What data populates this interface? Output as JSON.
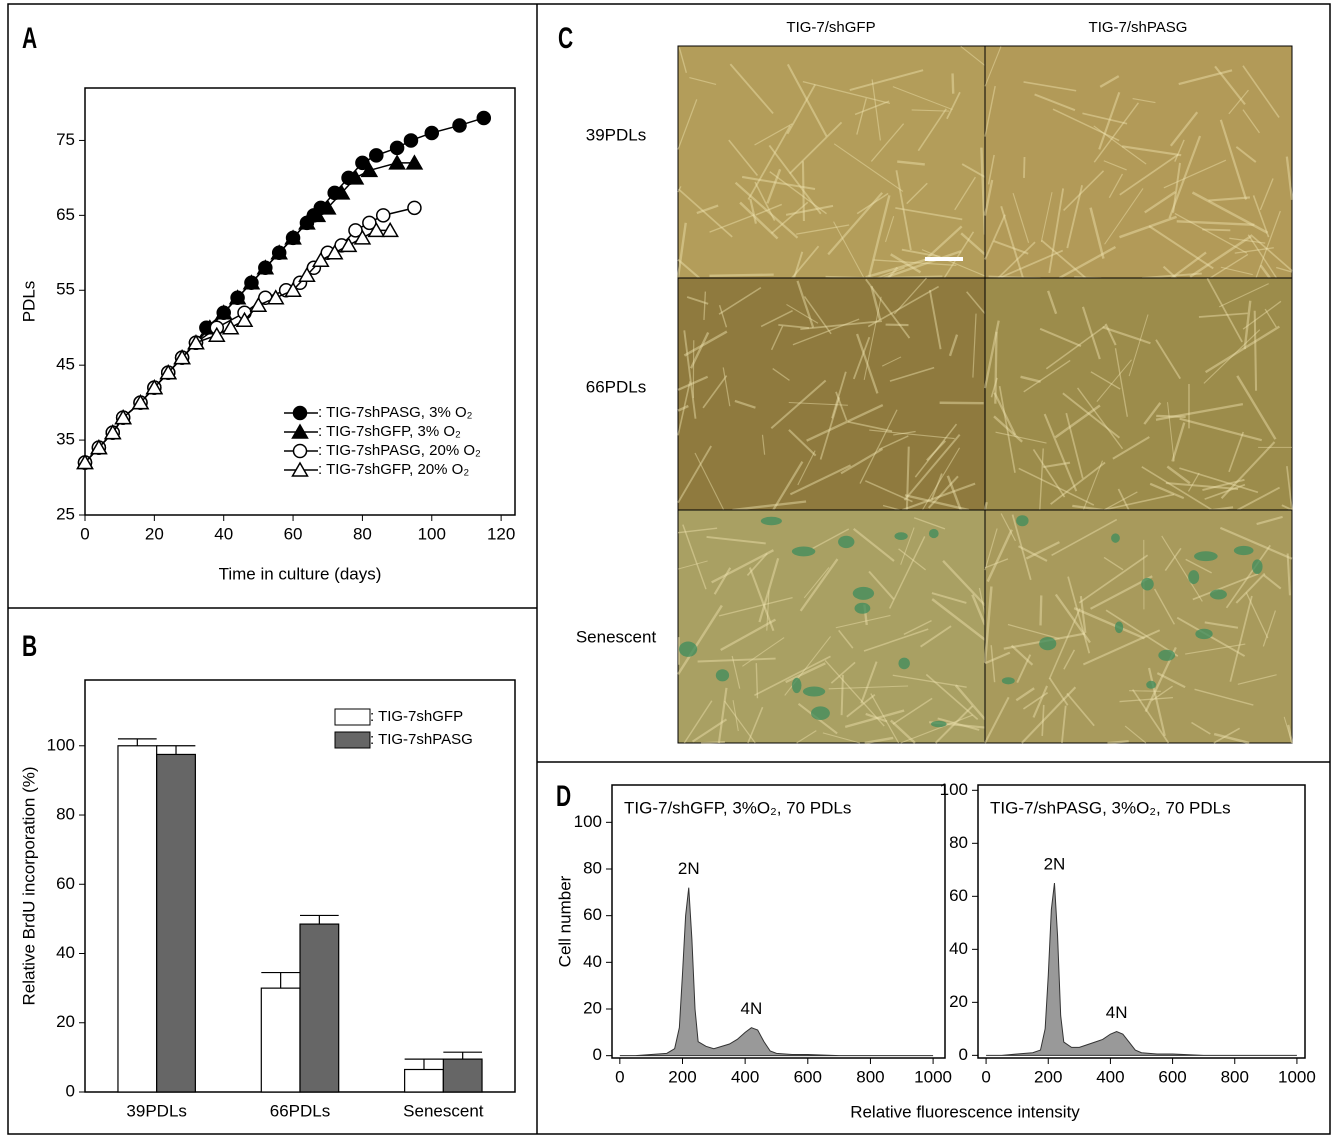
{
  "panel_labels": [
    "A",
    "B",
    "C",
    "D"
  ],
  "micrographs": {
    "columns": [
      "TIG-7/shGFP",
      "TIG-7/shPASG"
    ],
    "rows": [
      "39PDLs",
      "66PDLs",
      "Senescent"
    ]
  },
  "chart_data": [
    {
      "type": "line",
      "xlabel": "Time in culture (days)",
      "ylabel": "PDLs",
      "xlim": [
        0,
        124
      ],
      "ylim": [
        25,
        82
      ],
      "xticks": [
        0,
        20,
        40,
        60,
        80,
        100,
        120
      ],
      "yticks": [
        25,
        35,
        45,
        55,
        65,
        75
      ],
      "legend": "lower right",
      "series": [
        {
          "name": ": TIG-7shPASG, 3% O₂",
          "color": "#000000",
          "marker": "circle",
          "fill": "#000000",
          "x": [
            0,
            4,
            8,
            11,
            16,
            20,
            24,
            28,
            32,
            35,
            40,
            44,
            48,
            52,
            56,
            60,
            64,
            66,
            68,
            72,
            76,
            80,
            84,
            90,
            94,
            100,
            108,
            115
          ],
          "values": [
            32,
            34,
            36,
            38,
            40,
            42,
            44,
            46,
            48,
            50,
            52,
            54,
            56,
            58,
            60,
            62,
            64,
            65,
            66,
            68,
            70,
            72,
            73,
            74,
            75,
            76,
            77,
            78
          ]
        },
        {
          "name": ": TIG-7shGFP, 3% O₂",
          "color": "#000000",
          "marker": "triangle",
          "fill": "#000000",
          "x": [
            0,
            4,
            8,
            11,
            16,
            20,
            24,
            28,
            32,
            36,
            40,
            44,
            48,
            52,
            56,
            60,
            64,
            67,
            70,
            74,
            78,
            82,
            90,
            95
          ],
          "values": [
            32,
            34,
            36,
            38,
            40,
            42,
            44,
            46,
            48,
            50,
            52,
            54,
            56,
            58,
            60,
            62,
            64,
            65,
            66,
            68,
            70,
            71,
            72,
            72
          ]
        },
        {
          "name": ": TIG-7shPASG, 20% O₂",
          "color": "#000000",
          "marker": "circle",
          "fill": "#ffffff",
          "x": [
            0,
            4,
            8,
            11,
            16,
            20,
            24,
            28,
            32,
            38,
            46,
            52,
            58,
            62,
            66,
            70,
            74,
            78,
            82,
            86,
            95
          ],
          "values": [
            32,
            34,
            36,
            38,
            40,
            42,
            44,
            46,
            48,
            50,
            52,
            54,
            55,
            56,
            58,
            60,
            61,
            63,
            64,
            65,
            66
          ]
        },
        {
          "name": ": TIG-7shGFP, 20% O₂",
          "color": "#000000",
          "marker": "triangle",
          "fill": "#ffffff",
          "x": [
            0,
            4,
            8,
            11,
            16,
            20,
            24,
            28,
            32,
            38,
            42,
            46,
            50,
            55,
            60,
            64,
            68,
            72,
            76,
            80,
            84,
            88
          ],
          "values": [
            32,
            34,
            36,
            38,
            40,
            42,
            44,
            46,
            48,
            49,
            50,
            51,
            53,
            54,
            55,
            57,
            59,
            60,
            61,
            62,
            63,
            63
          ]
        }
      ]
    },
    {
      "type": "bar",
      "ylabel": "Relative BrdU incorporation (%)",
      "categories": [
        "39PDLs",
        "66PDLs",
        "Senescent"
      ],
      "ylim": [
        0,
        119
      ],
      "yticks": [
        0,
        20,
        40,
        60,
        80,
        100
      ],
      "legend": "upper right",
      "series": [
        {
          "name": ": TIG-7shGFP",
          "color": "#ffffff",
          "values": [
            100,
            30,
            6.5
          ],
          "errors": [
            2,
            4.5,
            3
          ]
        },
        {
          "name": ": TIG-7shPASG",
          "color": "#666666",
          "values": [
            97.5,
            48.5,
            9.5
          ],
          "errors": [
            2.5,
            2.5,
            2
          ]
        }
      ]
    },
    {
      "type": "area",
      "title": "TIG-7/shGFP, 3%O₂, 70 PDLs",
      "xlabel": "Relative fluorescence intensity",
      "ylabel": "Cell number",
      "xlim": [
        -25,
        1038
      ],
      "ylim": [
        -1,
        116
      ],
      "xticks": [
        0,
        200,
        400,
        600,
        800,
        1000
      ],
      "yticks": [
        0,
        20,
        40,
        60,
        80,
        100
      ],
      "annotations": [
        "2N",
        "4N"
      ],
      "color": "#999999",
      "x": [
        0,
        50,
        100,
        150,
        175,
        190,
        200,
        210,
        220,
        230,
        240,
        250,
        275,
        300,
        325,
        350,
        375,
        400,
        420,
        440,
        460,
        480,
        500,
        550,
        600,
        700,
        800,
        900,
        1000
      ],
      "values": [
        0,
        0,
        0.5,
        1,
        3,
        12,
        35,
        60,
        72,
        50,
        20,
        6,
        4,
        3,
        4,
        5,
        7,
        10,
        12,
        11,
        6,
        2,
        1,
        0.5,
        0.5,
        0,
        0,
        0,
        0
      ]
    },
    {
      "type": "area",
      "title": "TIG-7/shPASG, 3%O₂, 70 PDLs",
      "xlim": [
        -26,
        1026
      ],
      "ylim": [
        -1,
        102
      ],
      "xticks": [
        0,
        200,
        400,
        600,
        800,
        1000
      ],
      "yticks": [
        0,
        20,
        40,
        60,
        80,
        100
      ],
      "annotations": [
        "2N",
        "4N"
      ],
      "color": "#999999",
      "x": [
        0,
        50,
        100,
        150,
        175,
        190,
        200,
        210,
        220,
        230,
        240,
        250,
        275,
        300,
        325,
        350,
        375,
        400,
        420,
        440,
        460,
        480,
        500,
        550,
        600,
        700,
        800,
        900,
        1000
      ],
      "values": [
        0,
        0,
        0.5,
        1,
        2,
        10,
        30,
        55,
        65,
        45,
        15,
        5,
        3,
        3,
        4,
        5,
        6,
        8,
        9,
        8,
        5,
        2,
        1,
        0.5,
        0.5,
        0,
        0,
        0,
        0
      ]
    }
  ]
}
